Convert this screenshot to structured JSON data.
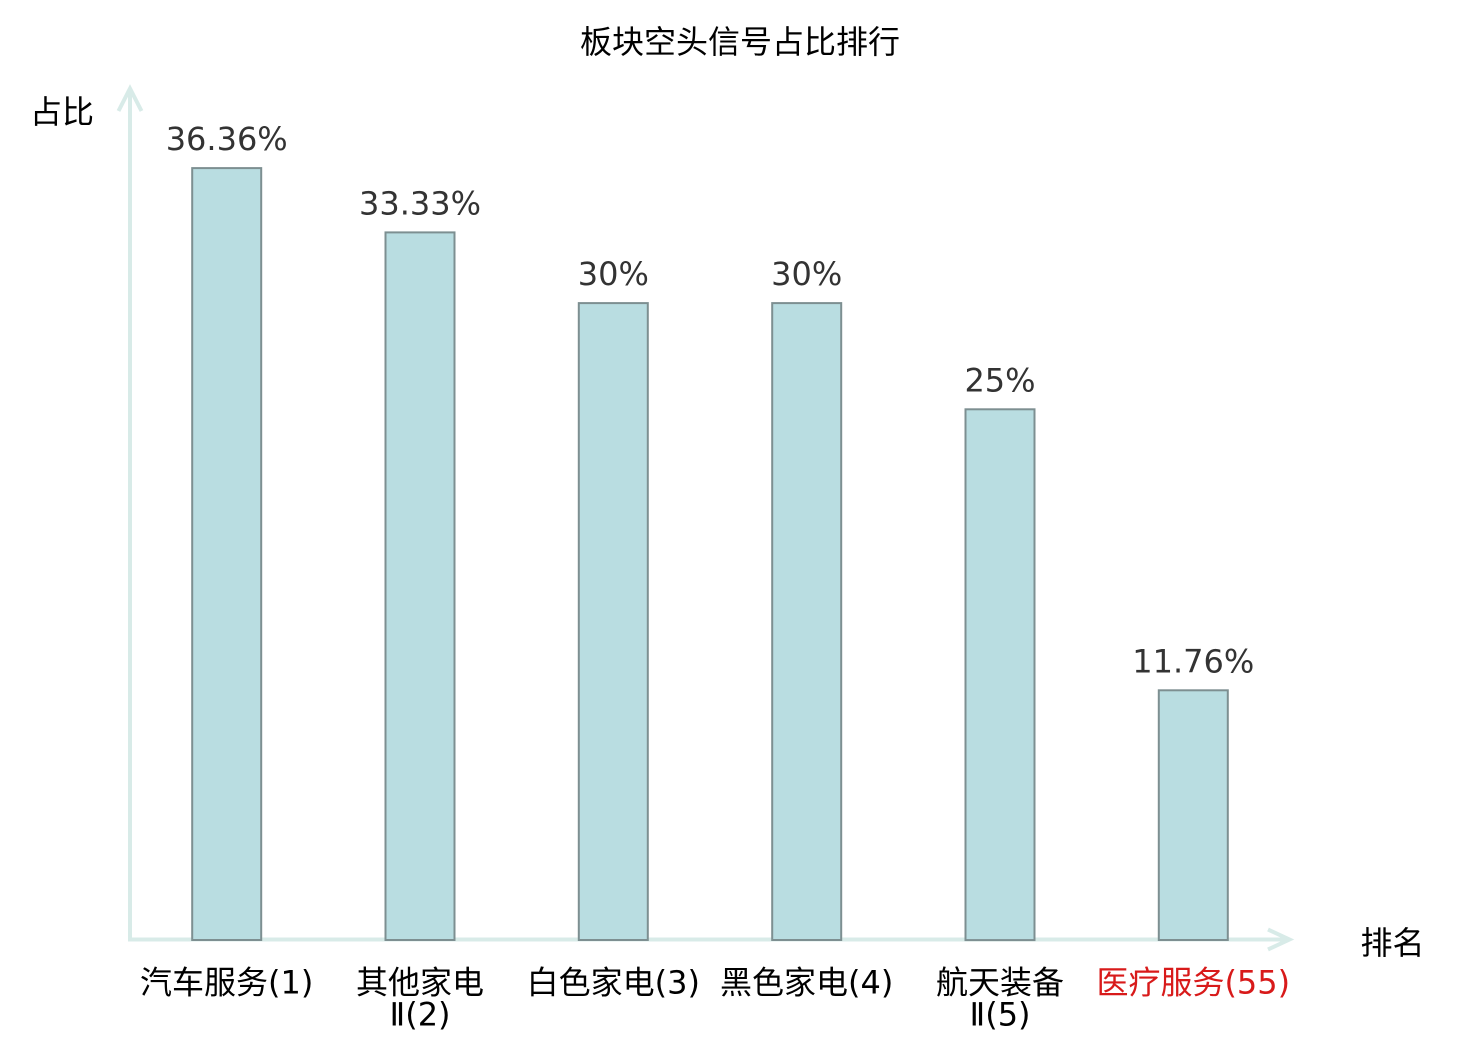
{
  "chart_data": {
    "type": "bar",
    "title": "板块空头信号占比排行",
    "xlabel": "排名",
    "ylabel": "占比",
    "categories": [
      "汽车服务(1)",
      "其他家电Ⅱ(2)",
      "白色家电(3)",
      "黑色家电(4)",
      "航天装备Ⅱ(5)",
      "医疗服务(55)"
    ],
    "values": [
      36.36,
      33.33,
      30,
      30,
      25,
      11.76
    ],
    "value_labels": [
      "36.36%",
      "33.33%",
      "30%",
      "30%",
      "25%",
      "11.76%"
    ],
    "tick_lines": [
      [
        "汽车服务(1)",
        ""
      ],
      [
        "其他家电",
        "Ⅱ(2)"
      ],
      [
        "白色家电(3)",
        ""
      ],
      [
        "黑色家电(4)",
        ""
      ],
      [
        "航天装备",
        "Ⅱ(5)"
      ],
      [
        "医疗服务(55)",
        ""
      ]
    ],
    "highlighted_category_index": 5,
    "grid": false,
    "legend": false,
    "colors": {
      "bar_fill": "#b9dde1",
      "bar_border": "#7d8f91",
      "axis": "#d8ebe8",
      "value_label": "#333333",
      "tick_label": "#000000",
      "highlight_label": "#d81a1a",
      "title": "#000000",
      "background": "#ffffff"
    }
  }
}
